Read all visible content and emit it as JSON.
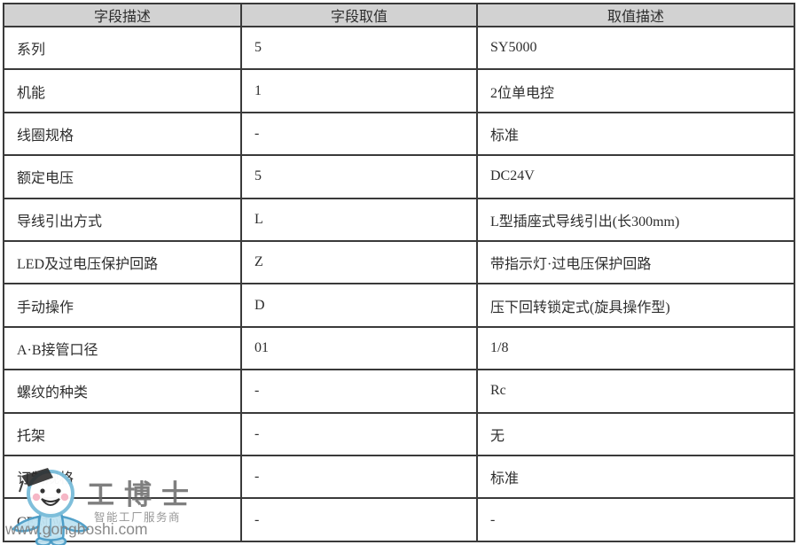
{
  "table": {
    "headers": [
      "字段描述",
      "字段取值",
      "取值描述"
    ],
    "rows": [
      {
        "field": "系列",
        "value": "5",
        "desc": "SY5000"
      },
      {
        "field": "机能",
        "value": "1",
        "desc": "2位单电控"
      },
      {
        "field": "线圈规格",
        "value": "-",
        "desc": "标准"
      },
      {
        "field": "额定电压",
        "value": "5",
        "desc": "DC24V"
      },
      {
        "field": "导线引出方式",
        "value": "L",
        "desc": "L型插座式导线引出(长300mm)"
      },
      {
        "field": "LED及过电压保护回路",
        "value": "Z",
        "desc": "带指示灯·过电压保护回路"
      },
      {
        "field": "手动操作",
        "value": "D",
        "desc": "压下回转锁定式(旋具操作型)"
      },
      {
        "field": "A·B接管口径",
        "value": "01",
        "desc": "1/8"
      },
      {
        "field": "螺纹的种类",
        "value": "-",
        "desc": "Rc"
      },
      {
        "field": "托架",
        "value": "-",
        "desc": "无"
      },
      {
        "field": "订制规格",
        "value": "-",
        "desc": "标准"
      },
      {
        "field": "CE对应",
        "value": "-",
        "desc": "-"
      }
    ]
  },
  "watermark": {
    "brand": "工博士",
    "tagline": "智能工厂服务商",
    "url": "www.gongboshi.com",
    "mascot": "gongboshi-mascot-icon"
  },
  "colors": {
    "header_bg": "#d2d2d2",
    "grid_border": "#3a3a3a",
    "cell_text": "#2e2e2e",
    "mascot_fill": "#bfe3f2",
    "mascot_outline": "#4a9cc7",
    "watermark_text": "#6e6e6e"
  }
}
